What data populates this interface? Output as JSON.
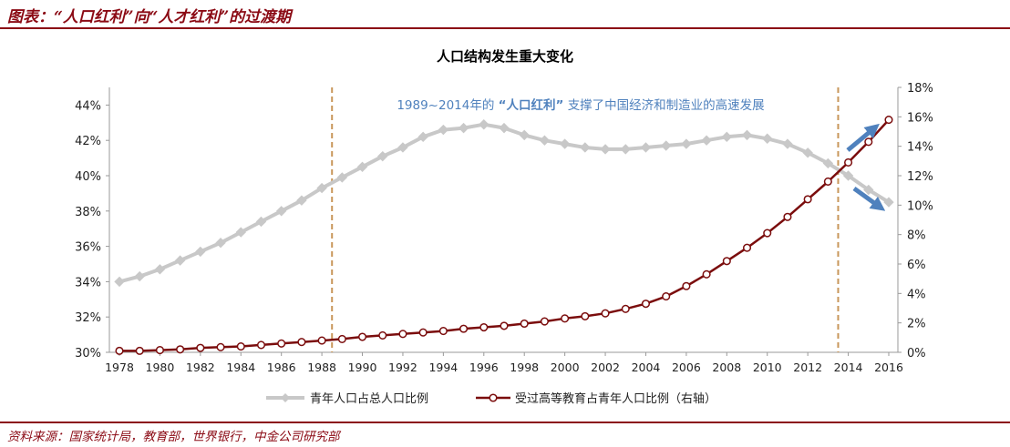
{
  "header": {
    "title": "图表：“人口红利”向“人才红利”的过渡期"
  },
  "footer": {
    "source": "资料来源：国家统计局，教育部，世界银行，中金公司研究部"
  },
  "colors": {
    "brand": "#8B0A14",
    "series1": "#C8C8C8",
    "series2": "#7B0D0D",
    "vline": "#C8965A",
    "annotation": "#4F81BD",
    "arrow": "#4F81BD"
  },
  "chart_data": {
    "type": "line",
    "title": "人口结构发生重大变化",
    "annotation": {
      "prefix": "1989~2014年的",
      "highlight": "“人口红利”",
      "suffix": "支撑了中国经济和制造业的高速发展"
    },
    "x": [
      1978,
      1979,
      1980,
      1981,
      1982,
      1983,
      1984,
      1985,
      1986,
      1987,
      1988,
      1989,
      1990,
      1991,
      1992,
      1993,
      1994,
      1995,
      1996,
      1997,
      1998,
      1999,
      2000,
      2001,
      2002,
      2003,
      2004,
      2005,
      2006,
      2007,
      2008,
      2009,
      2010,
      2011,
      2012,
      2013,
      2014,
      2015,
      2016
    ],
    "xticks": [
      "1978",
      "1980",
      "1982",
      "1984",
      "1986",
      "1988",
      "1990",
      "1992",
      "1994",
      "1996",
      "1998",
      "2000",
      "2002",
      "2004",
      "2006",
      "2008",
      "2010",
      "2012",
      "2014",
      "2016"
    ],
    "left_axis": {
      "ylim": [
        30,
        45
      ],
      "ticks": [
        "30%",
        "32%",
        "34%",
        "36%",
        "38%",
        "40%",
        "42%",
        "44%"
      ]
    },
    "right_axis": {
      "ylim": [
        0,
        18
      ],
      "ticks": [
        "0%",
        "2%",
        "4%",
        "6%",
        "8%",
        "10%",
        "12%",
        "14%",
        "16%",
        "18%"
      ]
    },
    "vlines": [
      1988.5,
      2013.5
    ],
    "series": [
      {
        "name": "青年人口占总人口比例",
        "axis": "left",
        "values": [
          34.0,
          34.3,
          34.7,
          35.2,
          35.7,
          36.2,
          36.8,
          37.4,
          38.0,
          38.6,
          39.3,
          39.9,
          40.5,
          41.1,
          41.6,
          42.2,
          42.6,
          42.7,
          42.9,
          42.7,
          42.3,
          42.0,
          41.8,
          41.6,
          41.5,
          41.5,
          41.6,
          41.7,
          41.8,
          42.0,
          42.2,
          42.3,
          42.1,
          41.8,
          41.3,
          40.7,
          40.0,
          39.2,
          38.5
        ]
      },
      {
        "name": "受过高等教育占青年人口比例（右轴）",
        "axis": "right",
        "values": [
          0.1,
          0.1,
          0.15,
          0.2,
          0.3,
          0.35,
          0.4,
          0.5,
          0.6,
          0.7,
          0.8,
          0.9,
          1.05,
          1.15,
          1.25,
          1.35,
          1.45,
          1.6,
          1.7,
          1.8,
          1.95,
          2.1,
          2.3,
          2.45,
          2.65,
          2.95,
          3.3,
          3.8,
          4.5,
          5.3,
          6.2,
          7.1,
          8.1,
          9.2,
          10.4,
          11.6,
          12.9,
          14.3,
          15.8
        ]
      }
    ]
  }
}
